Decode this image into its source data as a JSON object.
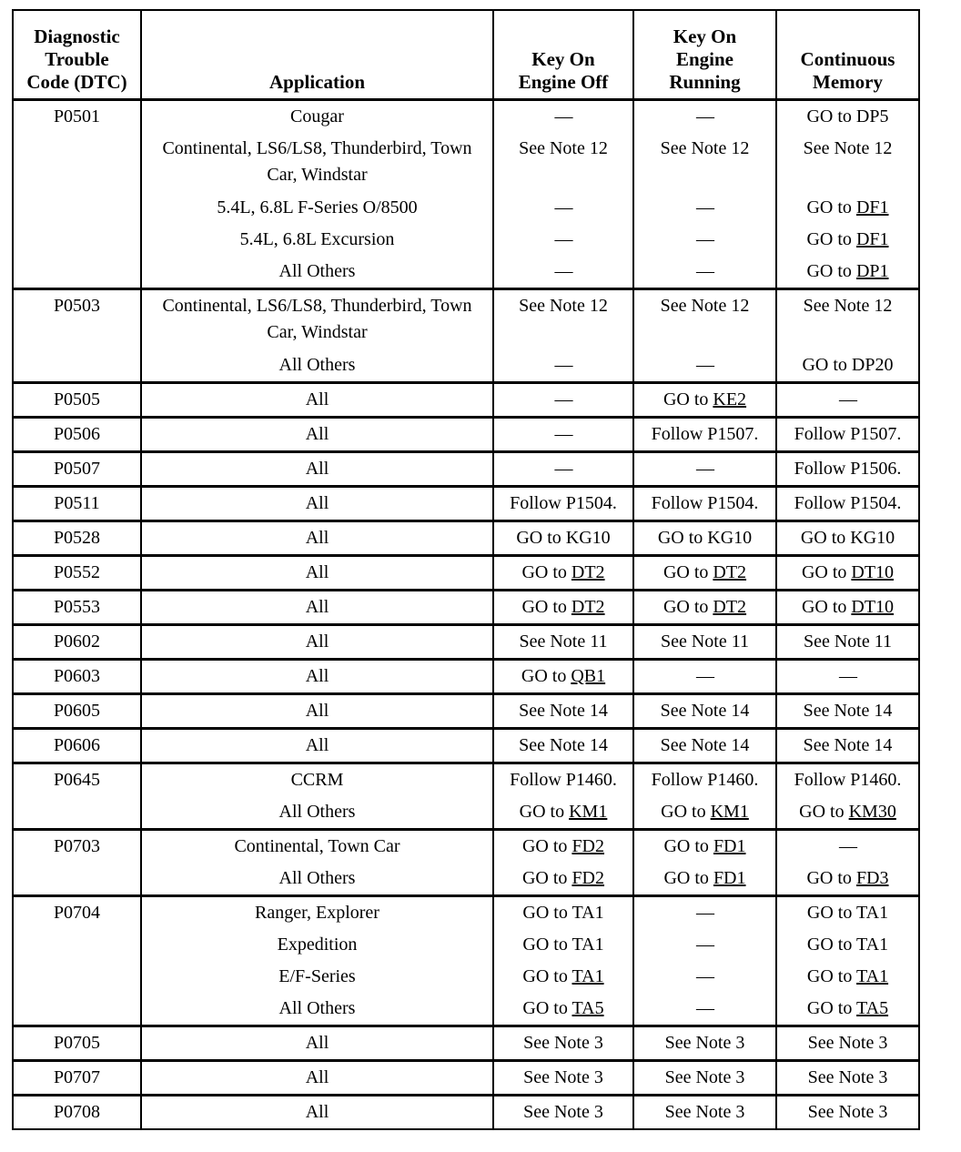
{
  "table": {
    "columns": [
      {
        "label": "Diagnostic\nTrouble\nCode (DTC)"
      },
      {
        "label": "Application"
      },
      {
        "label": "Key On\nEngine Off"
      },
      {
        "label": "Key On\nEngine\nRunning"
      },
      {
        "label": "Continuous\nMemory"
      }
    ],
    "groups": [
      {
        "dtc": "P0501",
        "rows": [
          {
            "app": "Cougar",
            "koeo": {
              "t": "—"
            },
            "koer": {
              "t": "—"
            },
            "cm": {
              "t": "GO to DP5"
            }
          },
          {
            "app": "Continental, LS6/LS8, Thunderbird, Town Car, Windstar",
            "tall": true,
            "koeo": {
              "t": "See Note 12"
            },
            "koer": {
              "t": "See Note 12"
            },
            "cm": {
              "t": "See Note 12"
            }
          },
          {
            "app": "5.4L, 6.8L F-Series O/8500",
            "koeo": {
              "t": "—"
            },
            "koer": {
              "t": "—"
            },
            "cm": {
              "t": "GO to ",
              "u": "DF1"
            }
          },
          {
            "app": "5.4L, 6.8L Excursion",
            "koeo": {
              "t": "—"
            },
            "koer": {
              "t": "—"
            },
            "cm": {
              "t": "GO to ",
              "u": "DF1"
            }
          },
          {
            "app": "All Others",
            "koeo": {
              "t": "—"
            },
            "koer": {
              "t": "—"
            },
            "cm": {
              "t": "GO to ",
              "u": "DP1"
            }
          }
        ]
      },
      {
        "dtc": "P0503",
        "rows": [
          {
            "app": "Continental, LS6/LS8, Thunderbird, Town Car, Windstar",
            "tall": true,
            "koeo": {
              "t": "See Note 12"
            },
            "koer": {
              "t": "See Note 12"
            },
            "cm": {
              "t": "See Note 12"
            }
          },
          {
            "app": "All Others",
            "koeo": {
              "t": "—"
            },
            "koer": {
              "t": "—"
            },
            "cm": {
              "t": "GO to DP20"
            }
          }
        ]
      },
      {
        "dtc": "P0505",
        "rows": [
          {
            "app": "All",
            "koeo": {
              "t": "—"
            },
            "koer": {
              "t": "GO to ",
              "u": "KE2"
            },
            "cm": {
              "t": "—"
            }
          }
        ]
      },
      {
        "dtc": "P0506",
        "rows": [
          {
            "app": "All",
            "koeo": {
              "t": "—"
            },
            "koer": {
              "t": "Follow P1507."
            },
            "cm": {
              "t": "Follow P1507."
            }
          }
        ]
      },
      {
        "dtc": "P0507",
        "rows": [
          {
            "app": "All",
            "koeo": {
              "t": "—"
            },
            "koer": {
              "t": "—"
            },
            "cm": {
              "t": "Follow P1506."
            }
          }
        ]
      },
      {
        "dtc": "P0511",
        "rows": [
          {
            "app": "All",
            "koeo": {
              "t": "Follow P1504."
            },
            "koer": {
              "t": "Follow P1504."
            },
            "cm": {
              "t": "Follow P1504."
            }
          }
        ]
      },
      {
        "dtc": "P0528",
        "rows": [
          {
            "app": "All",
            "koeo": {
              "t": "GO to KG10"
            },
            "koer": {
              "t": "GO to KG10"
            },
            "cm": {
              "t": "GO to KG10"
            }
          }
        ]
      },
      {
        "dtc": "P0552",
        "rows": [
          {
            "app": "All",
            "koeo": {
              "t": "GO to ",
              "u": "DT2"
            },
            "koer": {
              "t": "GO to ",
              "u": "DT2"
            },
            "cm": {
              "t": "GO to ",
              "u": "DT10"
            }
          }
        ]
      },
      {
        "dtc": "P0553",
        "rows": [
          {
            "app": "All",
            "koeo": {
              "t": "GO to ",
              "u": "DT2"
            },
            "koer": {
              "t": "GO to ",
              "u": "DT2"
            },
            "cm": {
              "t": "GO to ",
              "u": "DT10"
            }
          }
        ]
      },
      {
        "dtc": "P0602",
        "rows": [
          {
            "app": "All",
            "koeo": {
              "t": "See Note 11"
            },
            "koer": {
              "t": "See Note 11"
            },
            "cm": {
              "t": "See Note 11"
            }
          }
        ]
      },
      {
        "dtc": "P0603",
        "rows": [
          {
            "app": "All",
            "koeo": {
              "t": "GO to ",
              "u": "QB1"
            },
            "koer": {
              "t": "—"
            },
            "cm": {
              "t": "—"
            }
          }
        ]
      },
      {
        "dtc": "P0605",
        "rows": [
          {
            "app": "All",
            "koeo": {
              "t": "See Note 14"
            },
            "koer": {
              "t": "See Note 14"
            },
            "cm": {
              "t": "See Note 14"
            }
          }
        ]
      },
      {
        "dtc": "P0606",
        "rows": [
          {
            "app": "All",
            "koeo": {
              "t": "See Note 14"
            },
            "koer": {
              "t": "See Note 14"
            },
            "cm": {
              "t": "See Note 14"
            }
          }
        ]
      },
      {
        "dtc": "P0645",
        "rows": [
          {
            "app": "CCRM",
            "koeo": {
              "t": "Follow P1460."
            },
            "koer": {
              "t": "Follow P1460."
            },
            "cm": {
              "t": "Follow P1460."
            }
          },
          {
            "app": "All Others",
            "koeo": {
              "t": "GO to ",
              "u": "KM1"
            },
            "koer": {
              "t": "GO to ",
              "u": "KM1"
            },
            "cm": {
              "t": "GO to ",
              "u": "KM30"
            }
          }
        ]
      },
      {
        "dtc": "P0703",
        "rows": [
          {
            "app": "Continental, Town Car",
            "koeo": {
              "t": "GO to ",
              "u": "FD2"
            },
            "koer": {
              "t": "GO to ",
              "u": "FD1"
            },
            "cm": {
              "t": "—"
            }
          },
          {
            "app": "All Others",
            "koeo": {
              "t": "GO to ",
              "u": "FD2"
            },
            "koer": {
              "t": "GO to ",
              "u": "FD1"
            },
            "cm": {
              "t": "GO to ",
              "u": "FD3"
            }
          }
        ]
      },
      {
        "dtc": "P0704",
        "rows": [
          {
            "app": "Ranger, Explorer",
            "koeo": {
              "t": "GO to TA1"
            },
            "koer": {
              "t": "—"
            },
            "cm": {
              "t": "GO to TA1"
            }
          },
          {
            "app": "Expedition",
            "koeo": {
              "t": "GO to TA1"
            },
            "koer": {
              "t": "—"
            },
            "cm": {
              "t": "GO to TA1"
            }
          },
          {
            "app": "E/F-Series",
            "koeo": {
              "t": "GO to ",
              "u": "TA1"
            },
            "koer": {
              "t": "—"
            },
            "cm": {
              "t": "GO to ",
              "u": "TA1"
            }
          },
          {
            "app": "All Others",
            "koeo": {
              "t": "GO to ",
              "u": "TA5"
            },
            "koer": {
              "t": "—"
            },
            "cm": {
              "t": "GO to ",
              "u": "TA5"
            }
          }
        ]
      },
      {
        "dtc": "P0705",
        "rows": [
          {
            "app": "All",
            "koeo": {
              "t": "See Note 3"
            },
            "koer": {
              "t": "See Note 3"
            },
            "cm": {
              "t": "See Note 3"
            }
          }
        ]
      },
      {
        "dtc": "P0707",
        "rows": [
          {
            "app": "All",
            "koeo": {
              "t": "See Note 3"
            },
            "koer": {
              "t": "See Note 3"
            },
            "cm": {
              "t": "See Note 3"
            }
          }
        ]
      },
      {
        "dtc": "P0708",
        "rows": [
          {
            "app": "All",
            "koeo": {
              "t": "See Note 3"
            },
            "koer": {
              "t": "See Note 3"
            },
            "cm": {
              "t": "See Note 3"
            }
          }
        ]
      }
    ]
  }
}
